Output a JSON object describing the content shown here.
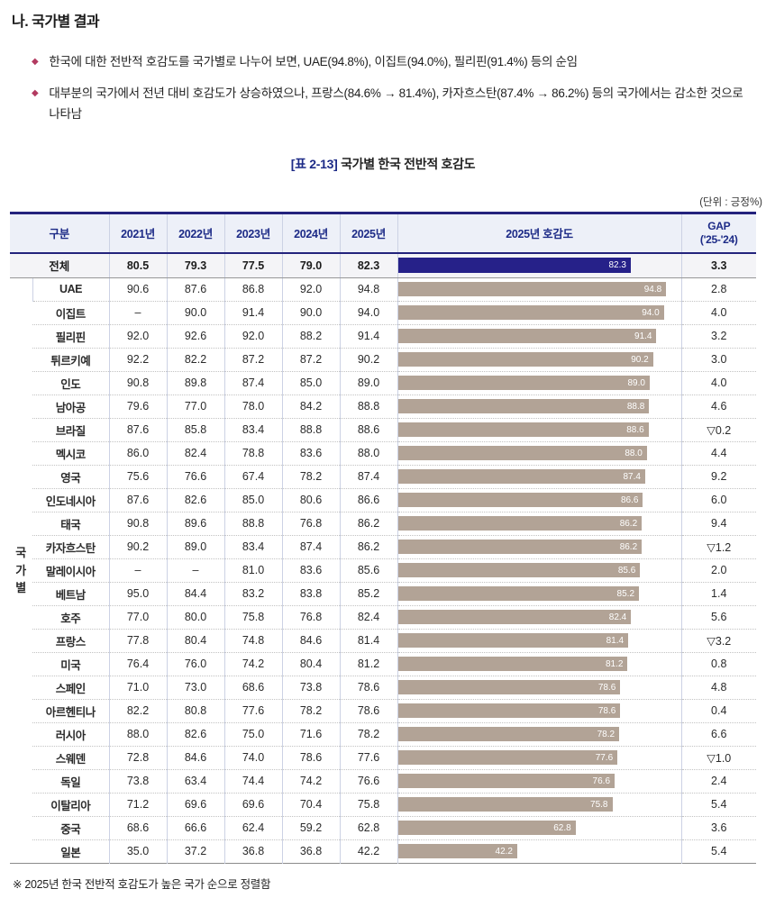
{
  "section": {
    "title": "나. 국가별 결과"
  },
  "bullets": [
    "한국에 대한 전반적 호감도를 국가별로 나누어 보면, UAE(94.8%), 이집트(94.0%), 필리핀(91.4%) 등의 순임",
    "대부분의 국가에서 전년 대비 호감도가 상승하였으나, 프랑스(84.6% → 81.4%), 카자흐스탄(87.4% → 86.2%) 등의 국가에서는 감소한 것으로 나타남"
  ],
  "table": {
    "caption_tag": "[표 2-13]",
    "caption_text": "국가별 한국 전반적 호감도",
    "unit_note": "(단위 : 긍정%)",
    "header": {
      "col_group": "구분",
      "years": [
        "2021년",
        "2022년",
        "2023년",
        "2024년",
        "2025년"
      ],
      "chart": "2025년 호감도",
      "gap_line1": "GAP",
      "gap_line2": "('25-'24)"
    },
    "group_label": "국가별",
    "total": {
      "name": "전체",
      "values": [
        "80.5",
        "79.3",
        "77.5",
        "79.0",
        "82.3"
      ],
      "bar": 82.3,
      "gap": "3.3"
    },
    "countries": [
      {
        "name": "UAE",
        "values": [
          "90.6",
          "87.6",
          "86.8",
          "92.0",
          "94.8"
        ],
        "bar": 94.8,
        "gap": "2.8"
      },
      {
        "name": "이집트",
        "values": [
          "–",
          "90.0",
          "91.4",
          "90.0",
          "94.0"
        ],
        "bar": 94.0,
        "gap": "4.0"
      },
      {
        "name": "필리핀",
        "values": [
          "92.0",
          "92.6",
          "92.0",
          "88.2",
          "91.4"
        ],
        "bar": 91.4,
        "gap": "3.2"
      },
      {
        "name": "튀르키예",
        "values": [
          "92.2",
          "82.2",
          "87.2",
          "87.2",
          "90.2"
        ],
        "bar": 90.2,
        "gap": "3.0"
      },
      {
        "name": "인도",
        "values": [
          "90.8",
          "89.8",
          "87.4",
          "85.0",
          "89.0"
        ],
        "bar": 89.0,
        "gap": "4.0"
      },
      {
        "name": "남아공",
        "values": [
          "79.6",
          "77.0",
          "78.0",
          "84.2",
          "88.8"
        ],
        "bar": 88.8,
        "gap": "4.6"
      },
      {
        "name": "브라질",
        "values": [
          "87.6",
          "85.8",
          "83.4",
          "88.8",
          "88.6"
        ],
        "bar": 88.6,
        "gap": "▽0.2"
      },
      {
        "name": "멕시코",
        "values": [
          "86.0",
          "82.4",
          "78.8",
          "83.6",
          "88.0"
        ],
        "bar": 88.0,
        "gap": "4.4"
      },
      {
        "name": "영국",
        "values": [
          "75.6",
          "76.6",
          "67.4",
          "78.2",
          "87.4"
        ],
        "bar": 87.4,
        "gap": "9.2"
      },
      {
        "name": "인도네시아",
        "values": [
          "87.6",
          "82.6",
          "85.0",
          "80.6",
          "86.6"
        ],
        "bar": 86.6,
        "gap": "6.0"
      },
      {
        "name": "태국",
        "values": [
          "90.8",
          "89.6",
          "88.8",
          "76.8",
          "86.2"
        ],
        "bar": 86.2,
        "gap": "9.4"
      },
      {
        "name": "카자흐스탄",
        "values": [
          "90.2",
          "89.0",
          "83.4",
          "87.4",
          "86.2"
        ],
        "bar": 86.2,
        "gap": "▽1.2"
      },
      {
        "name": "말레이시아",
        "values": [
          "–",
          "–",
          "81.0",
          "83.6",
          "85.6"
        ],
        "bar": 85.6,
        "gap": "2.0"
      },
      {
        "name": "베트남",
        "values": [
          "95.0",
          "84.4",
          "83.2",
          "83.8",
          "85.2"
        ],
        "bar": 85.2,
        "gap": "1.4"
      },
      {
        "name": "호주",
        "values": [
          "77.0",
          "80.0",
          "75.8",
          "76.8",
          "82.4"
        ],
        "bar": 82.4,
        "gap": "5.6"
      },
      {
        "name": "프랑스",
        "values": [
          "77.8",
          "80.4",
          "74.8",
          "84.6",
          "81.4"
        ],
        "bar": 81.4,
        "gap": "▽3.2"
      },
      {
        "name": "미국",
        "values": [
          "76.4",
          "76.0",
          "74.2",
          "80.4",
          "81.2"
        ],
        "bar": 81.2,
        "gap": "0.8"
      },
      {
        "name": "스페인",
        "values": [
          "71.0",
          "73.0",
          "68.6",
          "73.8",
          "78.6"
        ],
        "bar": 78.6,
        "gap": "4.8"
      },
      {
        "name": "아르헨티나",
        "values": [
          "82.2",
          "80.8",
          "77.6",
          "78.2",
          "78.6"
        ],
        "bar": 78.6,
        "gap": "0.4"
      },
      {
        "name": "러시아",
        "values": [
          "88.0",
          "82.6",
          "75.0",
          "71.6",
          "78.2"
        ],
        "bar": 78.2,
        "gap": "6.6"
      },
      {
        "name": "스웨덴",
        "values": [
          "72.8",
          "84.6",
          "74.0",
          "78.6",
          "77.6"
        ],
        "bar": 77.6,
        "gap": "▽1.0"
      },
      {
        "name": "독일",
        "values": [
          "73.8",
          "63.4",
          "74.4",
          "74.2",
          "76.6"
        ],
        "bar": 76.6,
        "gap": "2.4"
      },
      {
        "name": "이탈리아",
        "values": [
          "71.2",
          "69.6",
          "69.6",
          "70.4",
          "75.8"
        ],
        "bar": 75.8,
        "gap": "5.4"
      },
      {
        "name": "중국",
        "values": [
          "68.6",
          "66.6",
          "62.4",
          "59.2",
          "62.8"
        ],
        "bar": 62.8,
        "gap": "3.6"
      },
      {
        "name": "일본",
        "values": [
          "35.0",
          "37.2",
          "36.8",
          "36.8",
          "42.2"
        ],
        "bar": 42.2,
        "gap": "5.4"
      }
    ]
  },
  "footnote": "※ 2025년 한국 전반적 호감도가 높은 국가 순으로 정렬함",
  "colors": {
    "accent_navy": "#23227d",
    "header_text": "#1d2b87",
    "header_bg": "#edf0f8",
    "bar_total": "#262189",
    "bar_country": "#b2a396",
    "bullet_diamond": "#b23a60"
  },
  "chart_data": {
    "type": "bar",
    "title": "2025년 호감도",
    "orientation": "horizontal",
    "categories": [
      "전체",
      "UAE",
      "이집트",
      "필리핀",
      "튀르키예",
      "인도",
      "남아공",
      "브라질",
      "멕시코",
      "영국",
      "인도네시아",
      "태국",
      "카자흐스탄",
      "말레이시아",
      "베트남",
      "호주",
      "프랑스",
      "미국",
      "스페인",
      "아르헨티나",
      "러시아",
      "스웨덴",
      "독일",
      "이탈리아",
      "중국",
      "일본"
    ],
    "values": [
      82.3,
      94.8,
      94.0,
      91.4,
      90.2,
      89.0,
      88.8,
      88.6,
      88.0,
      87.4,
      86.6,
      86.2,
      86.2,
      85.6,
      85.2,
      82.4,
      81.4,
      81.2,
      78.6,
      78.6,
      78.2,
      77.6,
      76.6,
      75.8,
      62.8,
      42.2
    ],
    "xlim": [
      0,
      100
    ],
    "unit": "긍정%",
    "data_labels": true
  }
}
